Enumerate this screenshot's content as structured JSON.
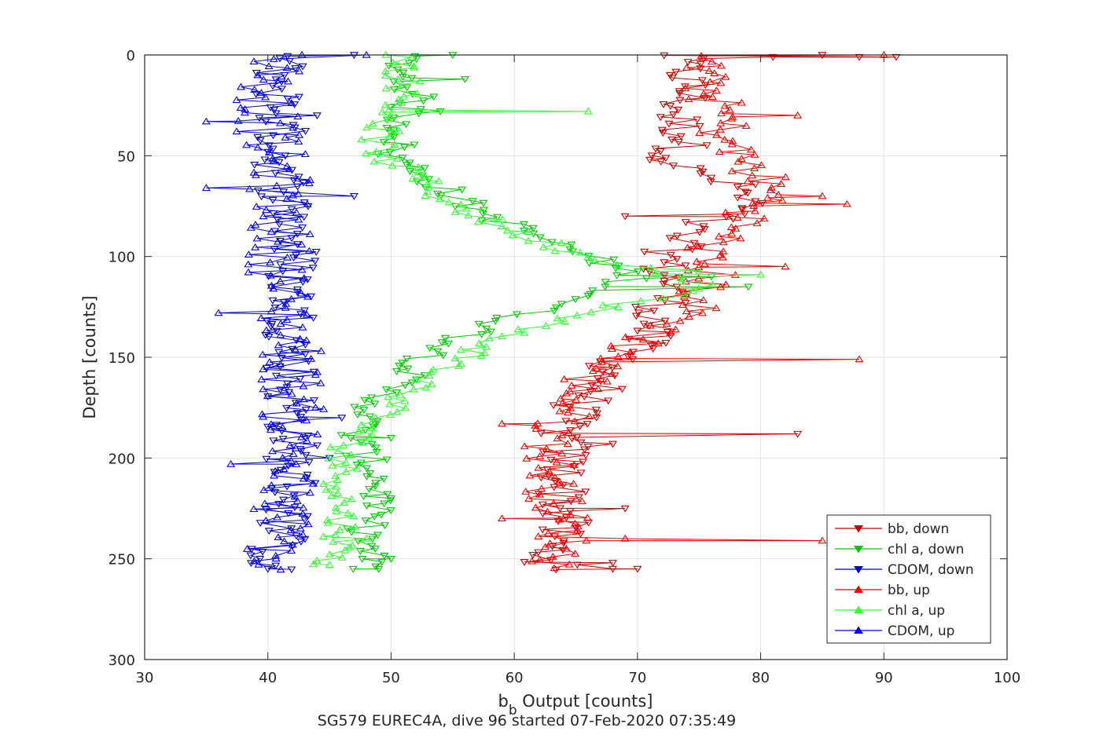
{
  "chart_data": {
    "type": "scatter",
    "title": "",
    "xlabel_main": "b",
    "xlabel_sub": "b",
    "xlabel_rest": " Output [counts]",
    "ylabel": "Depth [counts]",
    "caption": "SG579 EUREC4A, dive 96 started 07-Feb-2020 07:35:49",
    "xlim": [
      30,
      100
    ],
    "ylim": [
      0,
      300
    ],
    "y_reversed": true,
    "grid": true,
    "legend_position": "bottom-right",
    "x_ticks": [
      "30",
      "40",
      "50",
      "60",
      "70",
      "80",
      "90",
      "100"
    ],
    "y_ticks": [
      "0",
      "50",
      "100",
      "150",
      "200",
      "250",
      "300"
    ],
    "series": [
      {
        "name": "bb, down",
        "color": "#cc0000",
        "marker": "triangle-down",
        "profile": [
          [
            0,
            73
          ],
          [
            10,
            74
          ],
          [
            20,
            74
          ],
          [
            30,
            73
          ],
          [
            40,
            74
          ],
          [
            55,
            73
          ],
          [
            65,
            78
          ],
          [
            75,
            79
          ],
          [
            85,
            74
          ],
          [
            95,
            73
          ],
          [
            105,
            72
          ],
          [
            115,
            73
          ],
          [
            125,
            72
          ],
          [
            135,
            71
          ],
          [
            145,
            70
          ],
          [
            155,
            68
          ],
          [
            165,
            67
          ],
          [
            175,
            65
          ],
          [
            185,
            64
          ],
          [
            200,
            64
          ],
          [
            215,
            64
          ],
          [
            230,
            64
          ],
          [
            245,
            63
          ],
          [
            255,
            63
          ]
        ],
        "jitter": 2.2,
        "count": 160,
        "outliers": [
          [
            1,
            91
          ],
          [
            1,
            88
          ],
          [
            0,
            85
          ],
          [
            1,
            81
          ],
          [
            188,
            83
          ],
          [
            193,
            68
          ],
          [
            225,
            69
          ],
          [
            252,
            68
          ],
          [
            255,
            68
          ],
          [
            255,
            70
          ],
          [
            80,
            69
          ],
          [
            52,
            71
          ]
        ]
      },
      {
        "name": "chl a, down",
        "color": "#00c800",
        "marker": "triangle-down",
        "profile": [
          [
            0,
            51
          ],
          [
            10,
            51
          ],
          [
            20,
            52
          ],
          [
            30,
            51
          ],
          [
            40,
            51
          ],
          [
            50,
            50
          ],
          [
            60,
            53
          ],
          [
            70,
            55
          ],
          [
            80,
            58
          ],
          [
            90,
            62
          ],
          [
            100,
            66
          ],
          [
            110,
            70
          ],
          [
            120,
            66
          ],
          [
            130,
            60
          ],
          [
            140,
            56
          ],
          [
            150,
            53
          ],
          [
            160,
            51
          ],
          [
            170,
            49
          ],
          [
            180,
            48
          ],
          [
            190,
            47
          ],
          [
            200,
            48
          ],
          [
            210,
            49
          ],
          [
            220,
            49
          ],
          [
            230,
            48
          ],
          [
            240,
            48
          ],
          [
            255,
            48
          ]
        ],
        "jitter": 1.6,
        "count": 150,
        "outliers": [
          [
            0,
            55
          ],
          [
            12,
            56
          ],
          [
            28,
            54
          ],
          [
            115,
            79
          ],
          [
            110,
            76
          ],
          [
            190,
            50
          ],
          [
            220,
            50
          ],
          [
            250,
            50
          ],
          [
            255,
            49
          ]
        ]
      },
      {
        "name": "CDOM, down",
        "color": "#0000cc",
        "marker": "triangle-down",
        "profile": [
          [
            0,
            41
          ],
          [
            20,
            41
          ],
          [
            40,
            41
          ],
          [
            60,
            41
          ],
          [
            80,
            42
          ],
          [
            100,
            42
          ],
          [
            120,
            42
          ],
          [
            140,
            42
          ],
          [
            160,
            42
          ],
          [
            180,
            42
          ],
          [
            200,
            42
          ],
          [
            220,
            42
          ],
          [
            240,
            41
          ],
          [
            255,
            40
          ]
        ],
        "jitter": 2.2,
        "count": 150,
        "outliers": [
          [
            0,
            47
          ],
          [
            30,
            44
          ],
          [
            70,
            47
          ],
          [
            180,
            46
          ],
          [
            200,
            45
          ],
          [
            255,
            40
          ]
        ]
      },
      {
        "name": "bb, up",
        "color": "#ff0000",
        "marker": "triangle-up",
        "profile": [
          [
            0,
            76
          ],
          [
            10,
            75
          ],
          [
            20,
            76
          ],
          [
            30,
            77
          ],
          [
            40,
            77
          ],
          [
            50,
            78
          ],
          [
            60,
            80
          ],
          [
            70,
            81
          ],
          [
            80,
            79
          ],
          [
            90,
            77
          ],
          [
            100,
            75
          ],
          [
            110,
            76
          ],
          [
            120,
            75
          ],
          [
            130,
            74
          ],
          [
            140,
            71
          ],
          [
            150,
            68
          ],
          [
            160,
            66
          ],
          [
            170,
            65
          ],
          [
            180,
            64
          ],
          [
            190,
            63
          ],
          [
            200,
            63
          ],
          [
            215,
            63
          ],
          [
            230,
            64
          ],
          [
            245,
            64
          ],
          [
            255,
            63
          ]
        ],
        "jitter": 2.2,
        "count": 160,
        "outliers": [
          [
            0,
            90
          ],
          [
            74,
            87
          ],
          [
            105,
            82
          ],
          [
            151,
            88
          ],
          [
            241,
            85
          ],
          [
            183,
            59
          ],
          [
            230,
            59
          ],
          [
            240,
            69
          ],
          [
            30,
            83
          ],
          [
            70,
            85
          ]
        ]
      },
      {
        "name": "chl a, up",
        "color": "#33ff33",
        "marker": "triangle-up",
        "profile": [
          [
            0,
            51
          ],
          [
            10,
            51
          ],
          [
            20,
            51
          ],
          [
            30,
            50
          ],
          [
            40,
            49
          ],
          [
            50,
            49
          ],
          [
            60,
            52
          ],
          [
            70,
            54
          ],
          [
            80,
            57
          ],
          [
            90,
            61
          ],
          [
            100,
            66
          ],
          [
            110,
            74
          ],
          [
            115,
            76
          ],
          [
            120,
            72
          ],
          [
            130,
            64
          ],
          [
            140,
            59
          ],
          [
            150,
            56
          ],
          [
            160,
            53
          ],
          [
            170,
            51
          ],
          [
            180,
            49
          ],
          [
            190,
            47
          ],
          [
            200,
            46
          ],
          [
            210,
            46
          ],
          [
            220,
            46
          ],
          [
            230,
            46
          ],
          [
            240,
            46
          ],
          [
            253,
            45
          ]
        ],
        "jitter": 1.5,
        "count": 150,
        "outliers": [
          [
            28,
            66
          ],
          [
            107,
            75
          ],
          [
            109,
            80
          ],
          [
            253,
            45
          ],
          [
            240,
            48
          ]
        ]
      },
      {
        "name": "CDOM, up",
        "color": "#0000ff",
        "marker": "triangle-up",
        "profile": [
          [
            0,
            41
          ],
          [
            20,
            40
          ],
          [
            40,
            40
          ],
          [
            60,
            41
          ],
          [
            80,
            41
          ],
          [
            100,
            41
          ],
          [
            120,
            41
          ],
          [
            140,
            42
          ],
          [
            160,
            42
          ],
          [
            180,
            42
          ],
          [
            200,
            42
          ],
          [
            220,
            41
          ],
          [
            240,
            41
          ],
          [
            255,
            40
          ]
        ],
        "jitter": 2.6,
        "count": 150,
        "outliers": [
          [
            33,
            35
          ],
          [
            66,
            35
          ],
          [
            0,
            48
          ],
          [
            203,
            37
          ],
          [
            128,
            36
          ]
        ]
      }
    ]
  }
}
